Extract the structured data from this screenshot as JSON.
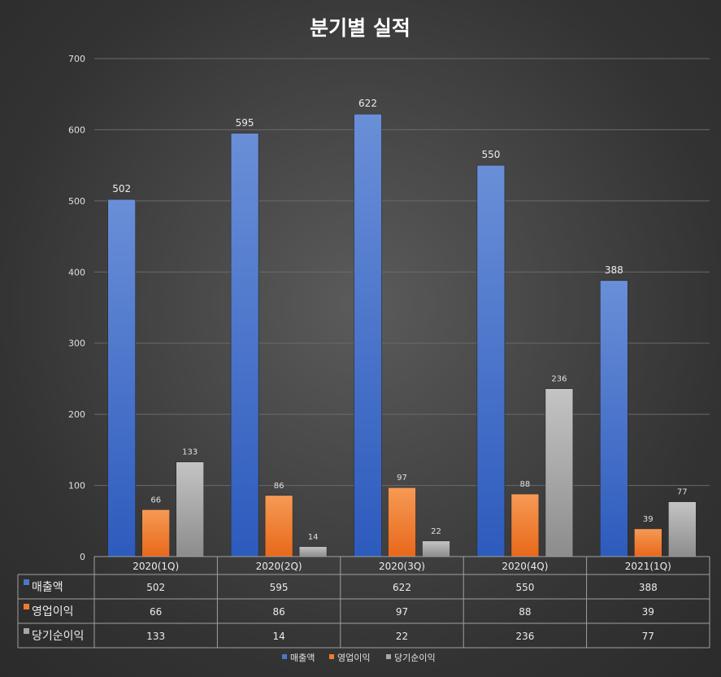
{
  "chart_data": {
    "type": "bar",
    "title": "분기별 실적",
    "categories": [
      "2020(1Q)",
      "2020(2Q)",
      "2020(3Q)",
      "2020(4Q)",
      "2021(1Q)"
    ],
    "series": [
      {
        "name": "매출액",
        "values": [
          502,
          595,
          622,
          550,
          388
        ],
        "color": "#4a78c9"
      },
      {
        "name": "영업이익",
        "values": [
          66,
          86,
          97,
          88,
          39
        ],
        "color": "#f07b2a"
      },
      {
        "name": "당기순이익",
        "values": [
          133,
          14,
          22,
          236,
          77
        ],
        "color": "#a6a6a6"
      }
    ],
    "ylim": [
      0,
      700
    ],
    "yticks": [
      0,
      100,
      200,
      300,
      400,
      500,
      600,
      700
    ],
    "grid": true,
    "legend": "bottom",
    "data_table": true
  }
}
